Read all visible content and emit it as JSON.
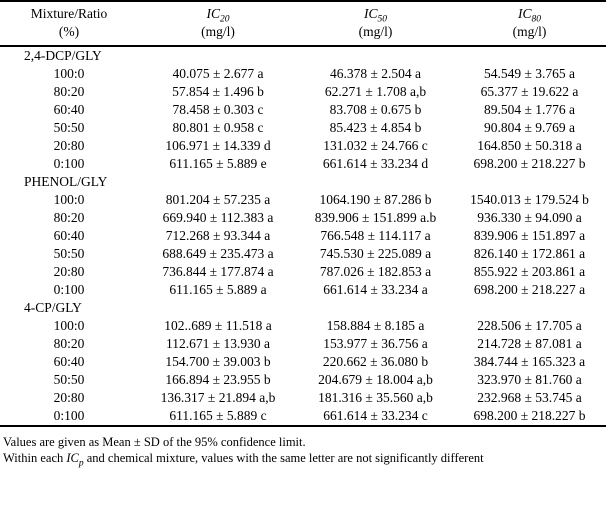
{
  "table": {
    "columns": [
      {
        "title": "Mixture/Ratio",
        "unit": "(%)"
      },
      {
        "title_base": "IC",
        "title_sub": "20",
        "unit": "(mg/l)"
      },
      {
        "title_base": "IC",
        "title_sub": "50",
        "unit": "(mg/l)"
      },
      {
        "title_base": "IC",
        "title_sub": "80",
        "unit": "(mg/l)"
      }
    ],
    "sections": [
      {
        "name": "2,4-DCP/GLY",
        "rows": [
          {
            "ratio": "100:0",
            "ic20": "40.075 ± 2.677 a",
            "ic50": "46.378 ± 2.504 a",
            "ic80": "54.549 ± 3.765 a"
          },
          {
            "ratio": "80:20",
            "ic20": "57.854 ± 1.496 b",
            "ic50": "62.271 ± 1.708 a,b",
            "ic80": "65.377 ± 19.622 a"
          },
          {
            "ratio": "60:40",
            "ic20": "78.458 ± 0.303 c",
            "ic50": "83.708 ± 0.675 b",
            "ic80": "89.504 ± 1.776 a"
          },
          {
            "ratio": "50:50",
            "ic20": "80.801 ± 0.958 c",
            "ic50": "85.423 ± 4.854 b",
            "ic80": "90.804 ± 9.769 a"
          },
          {
            "ratio": "20:80",
            "ic20": "106.971 ± 14.339 d",
            "ic50": "131.032 ± 24.766 c",
            "ic80": "164.850 ± 50.318 a"
          },
          {
            "ratio": "0:100",
            "ic20": "611.165 ± 5.889 e",
            "ic50": "661.614 ± 33.234 d",
            "ic80": "698.200 ± 218.227 b"
          }
        ]
      },
      {
        "name": "PHENOL/GLY",
        "rows": [
          {
            "ratio": "100:0",
            "ic20": "801.204 ± 57.235 a",
            "ic50": "1064.190 ± 87.286 b",
            "ic80": "1540.013 ± 179.524 b"
          },
          {
            "ratio": "80:20",
            "ic20": "669.940 ± 112.383 a",
            "ic50": "839.906 ± 151.899 a.b",
            "ic80": "936.330 ± 94.090 a"
          },
          {
            "ratio": "60:40",
            "ic20": "712.268 ± 93.344 a",
            "ic50": "766.548 ± 114.117 a",
            "ic80": "839.906 ± 151.897 a"
          },
          {
            "ratio": "50:50",
            "ic20": "688.649 ± 235.473 a",
            "ic50": "745.530 ± 225.089 a",
            "ic80": "826.140 ± 172.861 a"
          },
          {
            "ratio": "20:80",
            "ic20": "736.844 ± 177.874 a",
            "ic50": "787.026 ± 182.853 a",
            "ic80": "855.922 ± 203.861 a"
          },
          {
            "ratio": "0:100",
            "ic20": "611.165 ± 5.889 a",
            "ic50": "661.614 ± 33.234 a",
            "ic80": "698.200 ± 218.227 a"
          }
        ]
      },
      {
        "name": "4-CP/GLY",
        "rows": [
          {
            "ratio": "100:0",
            "ic20": "102..689 ± 11.518 a",
            "ic50": "158.884 ± 8.185 a",
            "ic80": "228.506 ± 17.705 a"
          },
          {
            "ratio": "80:20",
            "ic20": "112.671 ± 13.930 a",
            "ic50": "153.977 ± 36.756 a",
            "ic80": "214.728 ± 87.081 a"
          },
          {
            "ratio": "60:40",
            "ic20": "154.700 ± 39.003 b",
            "ic50": "220.662 ± 36.080 b",
            "ic80": "384.744 ± 165.323 a"
          },
          {
            "ratio": "50:50",
            "ic20": "166.894 ± 23.955 b",
            "ic50": "204.679 ± 18.004 a,b",
            "ic80": "323.970 ± 81.760 a"
          },
          {
            "ratio": "20:80",
            "ic20": "136.317 ± 21.894 a,b",
            "ic50": "181.316 ± 35.560 a,b",
            "ic80": "232.968 ± 53.745 a"
          },
          {
            "ratio": "0:100",
            "ic20": "611.165 ± 5.889 c",
            "ic50": "661.614 ± 33.234 c",
            "ic80": "698.200 ± 218.227 b"
          }
        ]
      }
    ]
  },
  "footnotes": {
    "line1": "Values are given as Mean ± SD of the 95% confidence limit.",
    "line2_prefix": "Within each ",
    "line2_ic": "IC",
    "line2_sub": "p",
    "line2_rest": " and chemical mixture, values with the same letter are not significantly different"
  }
}
